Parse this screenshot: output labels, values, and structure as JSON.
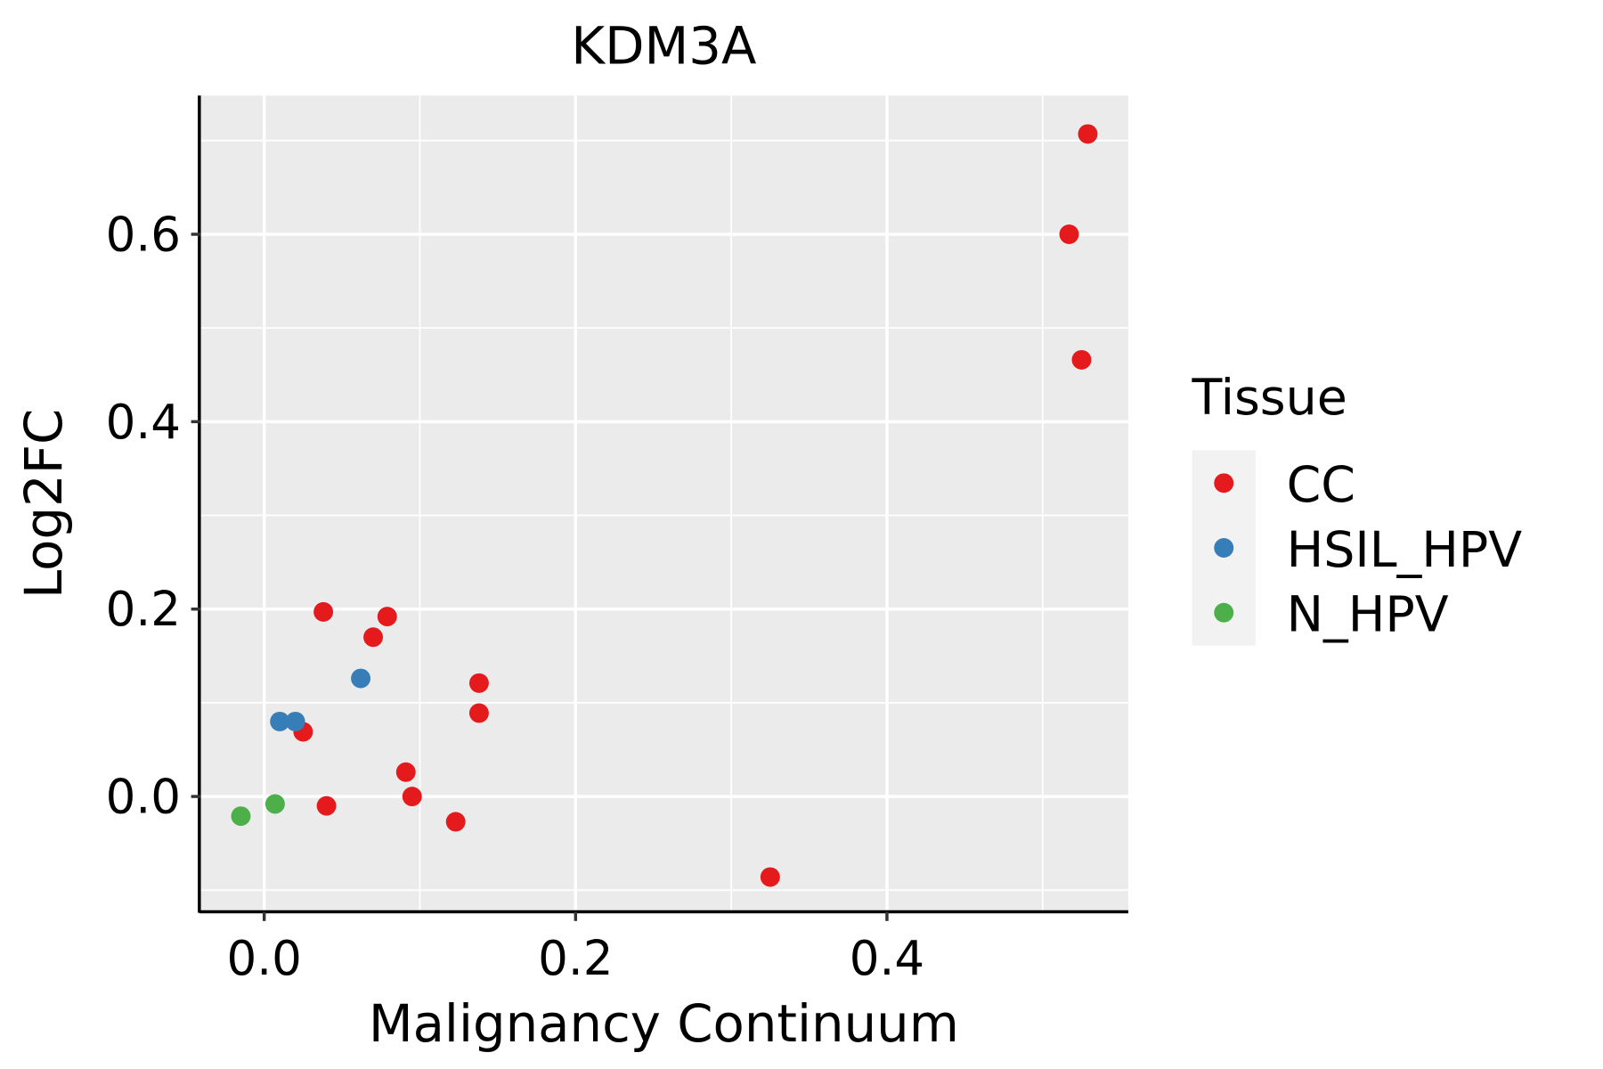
{
  "chart_data": {
    "type": "scatter",
    "title": "KDM3A",
    "xlabel": "Malignancy Continuum",
    "ylabel": "Log2FC",
    "xlim": [
      -0.041,
      0.555
    ],
    "ylim": [
      -0.123,
      0.748
    ],
    "xticks": [
      0.0,
      0.2,
      0.4
    ],
    "xtick_labels": [
      "0.0",
      "0.2",
      "0.4"
    ],
    "xminor": [
      0.1,
      0.3,
      0.5
    ],
    "yticks": [
      0.0,
      0.2,
      0.4,
      0.6
    ],
    "ytick_labels": [
      "0.0",
      "0.2",
      "0.4",
      "0.6"
    ],
    "yminor": [
      -0.1,
      0.1,
      0.3,
      0.5,
      0.7
    ],
    "grid": true,
    "legend": {
      "title": "Tissue",
      "placement": "right"
    },
    "series": [
      {
        "name": "CC",
        "color": "#E41A1C",
        "points": [
          [
            0.529,
            0.707
          ],
          [
            0.517,
            0.6
          ],
          [
            0.525,
            0.466
          ],
          [
            0.038,
            0.197
          ],
          [
            0.079,
            0.192
          ],
          [
            0.07,
            0.17
          ],
          [
            0.138,
            0.121
          ],
          [
            0.138,
            0.089
          ],
          [
            0.025,
            0.069
          ],
          [
            0.091,
            0.026
          ],
          [
            0.095,
            0.0
          ],
          [
            0.04,
            -0.01
          ],
          [
            0.123,
            -0.027
          ],
          [
            0.325,
            -0.086
          ]
        ]
      },
      {
        "name": "HSIL_HPV",
        "color": "#377EB8",
        "points": [
          [
            0.062,
            0.126
          ],
          [
            0.01,
            0.08
          ],
          [
            0.02,
            0.08
          ]
        ]
      },
      {
        "name": "N_HPV",
        "color": "#4DAF4A",
        "points": [
          [
            -0.015,
            -0.021
          ],
          [
            0.007,
            -0.008
          ]
        ]
      }
    ]
  }
}
